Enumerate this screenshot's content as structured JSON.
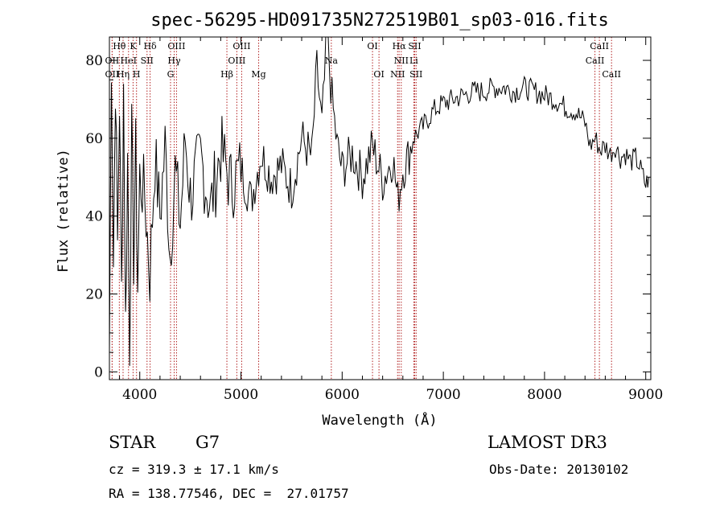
{
  "chart_data": {
    "type": "line",
    "title": "spec-56295-HD091735N272519B01_sp03-016.fits",
    "xlabel": "Wavelength (Å)",
    "ylabel": "Flux (relative)",
    "xlim": [
      3700,
      9050
    ],
    "ylim": [
      -2,
      86
    ],
    "xticks": [
      4000,
      5000,
      6000,
      7000,
      8000,
      9000
    ],
    "yticks": [
      0,
      20,
      40,
      60,
      80
    ],
    "series": [
      {
        "name": "spectrum",
        "x": [
          3700,
          3720,
          3740,
          3760,
          3780,
          3800,
          3820,
          3840,
          3860,
          3880,
          3900,
          3920,
          3940,
          3960,
          3980,
          4000,
          4050,
          4100,
          4150,
          4200,
          4250,
          4300,
          4350,
          4400,
          4450,
          4500,
          4600,
          4700,
          4800,
          4900,
          5000,
          5100,
          5200,
          5300,
          5400,
          5500,
          5600,
          5700,
          5750,
          5800,
          5850,
          5900,
          5950,
          6000,
          6100,
          6200,
          6300,
          6400,
          6500,
          6550,
          6600,
          6650,
          6700,
          6800,
          6900,
          7000,
          7100,
          7200,
          7300,
          7400,
          7500,
          7600,
          7700,
          7800,
          7900,
          8000,
          8100,
          8200,
          8300,
          8400,
          8450,
          8500,
          8550,
          8600,
          8650,
          8700,
          8750,
          8800,
          8850,
          8900,
          8950,
          9000,
          9030
        ],
        "y": [
          5,
          82,
          28,
          76,
          32,
          70,
          20,
          74,
          12,
          55,
          8,
          60,
          30,
          56,
          22,
          50,
          45,
          25,
          55,
          40,
          58,
          30,
          52,
          38,
          60,
          45,
          55,
          42,
          57,
          48,
          52,
          44,
          56,
          50,
          53,
          47,
          60,
          55,
          78,
          63,
          86,
          70,
          58,
          52,
          56,
          50,
          58,
          49,
          55,
          44,
          52,
          55,
          60,
          63,
          67,
          69,
          70,
          71,
          72,
          72,
          73,
          73,
          72,
          73,
          72,
          71,
          70,
          68,
          67,
          64,
          58,
          60,
          57,
          58,
          56,
          58,
          55,
          56,
          54,
          55,
          52,
          48,
          50
        ]
      }
    ],
    "spectral_lines": [
      {
        "label": "Hθ",
        "x": 3798,
        "row": 0
      },
      {
        "label": "K",
        "x": 3934,
        "row": 0
      },
      {
        "label": "Hδ",
        "x": 4102,
        "row": 0
      },
      {
        "label": "OIII",
        "x": 4363,
        "row": 0
      },
      {
        "label": "OIII",
        "x": 5007,
        "row": 0
      },
      {
        "label": "OI",
        "x": 6300,
        "row": 0
      },
      {
        "label": "Hα",
        "x": 6563,
        "row": 0
      },
      {
        "label": "SII",
        "x": 6717,
        "row": 0
      },
      {
        "label": "CaII",
        "x": 8542,
        "row": 0
      },
      {
        "label": "OII",
        "x": 3727,
        "row": 1
      },
      {
        "label": "HeI",
        "x": 3889,
        "row": 1
      },
      {
        "label": "SII",
        "x": 4072,
        "row": 1
      },
      {
        "label": "Hγ",
        "x": 4340,
        "row": 1
      },
      {
        "label": "OIII",
        "x": 4959,
        "row": 1
      },
      {
        "label": "Na",
        "x": 5893,
        "row": 1
      },
      {
        "label": "NII",
        "x": 6584,
        "row": 1
      },
      {
        "label": "Li",
        "x": 6708,
        "row": 1
      },
      {
        "label": "CaII",
        "x": 8498,
        "row": 1
      },
      {
        "label": "OII",
        "x": 3727,
        "row": 2
      },
      {
        "label": "Hη",
        "x": 3835,
        "row": 2
      },
      {
        "label": "H",
        "x": 3968,
        "row": 2
      },
      {
        "label": "G",
        "x": 4304,
        "row": 2
      },
      {
        "label": "Hβ",
        "x": 4861,
        "row": 2
      },
      {
        "label": "Mg",
        "x": 5175,
        "row": 2
      },
      {
        "label": "OI",
        "x": 6364,
        "row": 2
      },
      {
        "label": "NII",
        "x": 6548,
        "row": 2
      },
      {
        "label": "SII",
        "x": 6731,
        "row": 2
      },
      {
        "label": "CaII",
        "x": 8662,
        "row": 2
      }
    ]
  },
  "info": {
    "object_type": "STAR",
    "subclass": "G7",
    "survey": "LAMOST DR3",
    "cz": "cz = 319.3 ± 17.1 km/s",
    "obs_date": "Obs-Date: 20130102",
    "coords": "RA = 138.77546, DEC =  27.01757"
  },
  "colors": {
    "line_marker": "#b22222",
    "spectrum": "#000000"
  }
}
